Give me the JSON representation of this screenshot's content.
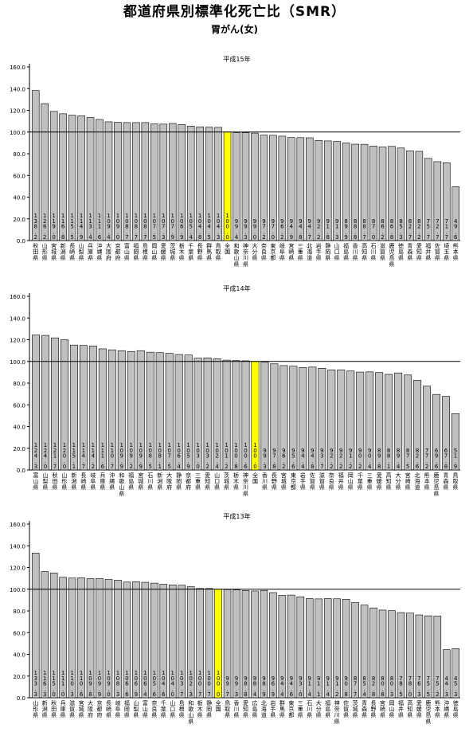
{
  "page": {
    "title": "都道府県別標準化死亡比（SMR）",
    "subtitle": "胃がん(女)"
  },
  "colors": {
    "bar": "#c0c0c0",
    "highlight": "#ffff00",
    "reference_line": "#000000"
  },
  "chart_data": [
    {
      "type": "bar",
      "title": "平成15年",
      "ylim": [
        0,
        160
      ],
      "yticks": [
        "0.0",
        "20.0",
        "40.0",
        "60.0",
        "80.0",
        "100.0",
        "120.0",
        "140.0",
        "160.0"
      ],
      "reference_value": 100,
      "highlight_category": "全国",
      "categories": [
        "秋田県",
        "山形県",
        "宮城県",
        "新潟県",
        "長崎県",
        "山梨県",
        "兵庫県",
        "沖縄県",
        "大阪府",
        "京都府",
        "富山県",
        "福岡県",
        "島根県",
        "岡山県",
        "愛媛県",
        "茨城県",
        "栃木県",
        "千葉県",
        "長野県",
        "群馬県",
        "鳥取県",
        "全国",
        "和歌山県",
        "神奈川県",
        "大分県",
        "奈良県",
        "東京都",
        "岐阜県",
        "宮崎県",
        "三重県",
        "北海道",
        "岩手県",
        "静岡県",
        "山口県",
        "福島県",
        "香川県",
        "高知県",
        "石川県",
        "滋賀県",
        "鹿児島県",
        "徳島県",
        "青森県",
        "愛知県",
        "福井県",
        "佐賀県",
        "埼玉県",
        "熊本県"
      ],
      "bar_labels": [
        "138.2",
        "126.2",
        "119.0",
        "116.8",
        "115.5",
        "114.9",
        "113.4",
        "111.6",
        "109.4",
        "109.0",
        "108.7",
        "108.7",
        "108.7",
        "107.5",
        "107.3",
        "107.9",
        "106.9",
        "105.4",
        "104.8",
        "104.5",
        "104.3",
        "100.0",
        "99.4",
        "99.3",
        "99.0",
        "97.2",
        "97.0",
        "96.2",
        "94.9",
        "94.8",
        "94.7",
        "92.2",
        "91.8",
        "91.3",
        "89.9",
        "88.8",
        "88.7",
        "87.0",
        "86.2",
        "86.8",
        "85.3",
        "82.7",
        "82.2",
        "75.7",
        "72.7",
        "71.7",
        "49.6"
      ],
      "values": [
        138.2,
        126.2,
        119.0,
        116.8,
        115.5,
        114.9,
        113.4,
        111.6,
        109.4,
        109.0,
        108.7,
        108.7,
        108.7,
        107.5,
        107.3,
        107.9,
        106.9,
        105.4,
        104.8,
        104.5,
        104.3,
        100.0,
        99.4,
        99.3,
        99.0,
        97.2,
        97.0,
        96.2,
        94.9,
        94.8,
        94.7,
        92.2,
        91.8,
        91.3,
        89.9,
        88.8,
        88.7,
        87.0,
        86.2,
        86.8,
        85.3,
        82.7,
        82.2,
        75.7,
        72.7,
        71.7,
        49.6
      ]
    },
    {
      "type": "bar",
      "title": "平成14年",
      "ylim": [
        0,
        160
      ],
      "yticks": [
        "0.0",
        "20.0",
        "40.0",
        "60.0",
        "80.0",
        "100.0",
        "120.0",
        "140.0",
        "160.0"
      ],
      "reference_value": 100,
      "highlight_category": "全国",
      "categories": [
        "富山県",
        "山梨県",
        "秋田県",
        "山形県",
        "新潟県",
        "長崎県",
        "岐阜県",
        "兵庫県",
        "沖縄県",
        "和歌山県",
        "福島県",
        "宮城県",
        "石川県",
        "新潟県",
        "大阪府",
        "静岡県",
        "京都府",
        "三重県",
        "愛知県",
        "山口県",
        "茨城県",
        "栃木県",
        "神奈川県",
        "全国",
        "香川県",
        "長野県",
        "宮城県",
        "東京都",
        "岩手県",
        "佐賀県",
        "滋賀県",
        "奈良県",
        "福井県",
        "岡山県",
        "千葉県",
        "三重県",
        "愛媛県",
        "高知県",
        "大分県",
        "宮崎県",
        "北海道",
        "熊本県",
        "鹿児島県",
        "青森県",
        "鳥取県"
      ],
      "bar_labels": [
        "124.3",
        "124.0",
        "121.7",
        "120.0",
        "115.1",
        "114.7",
        "114.2",
        "111.6",
        "110.7",
        "109.9",
        "109.2",
        "109.9",
        "108.5",
        "108.1",
        "107.5",
        "106.4",
        "105.9",
        "103.0",
        "103.2",
        "102.4",
        "101.2",
        "100.8",
        "100.6",
        "100.0",
        "99.3",
        "97.8",
        "96.2",
        "95.6",
        "94.4",
        "94.8",
        "93.7",
        "92.2",
        "92.2",
        "91.2",
        "90.2",
        "90.4",
        "89.8",
        "88.1",
        "89.4",
        "87.5",
        "82.6",
        "77.2",
        "69.6",
        "67.8",
        "51.9"
      ],
      "values": [
        124.3,
        124.0,
        121.7,
        120.0,
        115.1,
        114.7,
        114.2,
        111.6,
        110.7,
        109.9,
        109.2,
        109.9,
        108.5,
        108.1,
        107.5,
        106.4,
        105.9,
        103.0,
        103.2,
        102.4,
        101.2,
        100.8,
        100.6,
        100.0,
        99.3,
        97.8,
        96.2,
        95.6,
        94.4,
        94.8,
        93.7,
        92.2,
        92.2,
        91.2,
        90.2,
        90.4,
        89.8,
        88.1,
        89.4,
        87.5,
        82.6,
        77.2,
        69.6,
        67.8,
        51.9
      ]
    },
    {
      "type": "bar",
      "title": "平成13年",
      "ylim": [
        0,
        160
      ],
      "yticks": [
        "0.0",
        "20.0",
        "40.0",
        "60.0",
        "80.0",
        "100.0",
        "120.0",
        "140.0",
        "160.0"
      ],
      "reference_value": 100,
      "highlight_category": "全国",
      "categories": [
        "山形県",
        "新潟県",
        "秋田県",
        "兵庫県",
        "滋賀県",
        "宮城県",
        "大阪府",
        "京都府",
        "長崎県",
        "岐阜県",
        "福岡県",
        "山梨県",
        "富山県",
        "奈良県",
        "千葉県",
        "山口県",
        "島根県",
        "和歌山県",
        "栃木県",
        "静岡県",
        "全国",
        "鳥取県",
        "香川県",
        "愛知県",
        "広島県",
        "北海道",
        "岩手県",
        "群馬県",
        "東京都",
        "三重県",
        "石川県",
        "大分県",
        "福島県",
        "神奈川県",
        "佐賀県",
        "茨城県",
        "青森県",
        "長野県",
        "宮崎県",
        "岡山県",
        "福井県",
        "高知県",
        "愛媛県",
        "鹿児島県",
        "熊本県",
        "沖縄県",
        "徳島県"
      ],
      "bar_labels": [
        "133.3",
        "116.3",
        "115.0",
        "111.0",
        "110.3",
        "110.6",
        "109.8",
        "109.9",
        "109.0",
        "108.3",
        "106.6",
        "106.9",
        "106.4",
        "105.6",
        "104.6",
        "104.0",
        "103.7",
        "102.3",
        "100.7",
        "100.7",
        "100.0",
        "99.7",
        "99.3",
        "98.8",
        "98.4",
        "98.9",
        "96.9",
        "94.4",
        "94.6",
        "93.0",
        "91.4",
        "91.1",
        "91.4",
        "91.2",
        "90.8",
        "87.7",
        "85.4",
        "82.8",
        "80.8",
        "80.3",
        "78.5",
        "78.0",
        "76.3",
        "75.5",
        "75.2",
        "44.3",
        "45.3"
      ],
      "values": [
        133.3,
        116.3,
        115.0,
        111.0,
        110.3,
        110.6,
        109.8,
        109.9,
        109.0,
        108.3,
        106.6,
        106.9,
        106.4,
        105.6,
        104.6,
        104.0,
        103.7,
        102.3,
        100.7,
        100.7,
        100.0,
        99.7,
        99.3,
        98.8,
        98.4,
        98.9,
        96.9,
        94.4,
        94.6,
        93.0,
        91.4,
        91.1,
        91.4,
        91.2,
        90.8,
        87.7,
        85.4,
        82.8,
        80.8,
        80.3,
        78.5,
        78.0,
        76.3,
        75.5,
        75.2,
        44.3,
        45.3
      ]
    }
  ]
}
